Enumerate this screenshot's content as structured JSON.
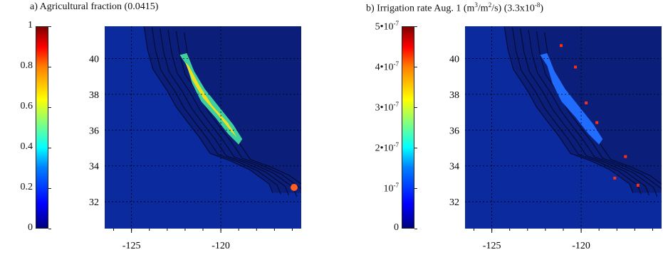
{
  "chart_data": [
    {
      "type": "heatmap",
      "title": "a) Agricultural fraction (0.0415)",
      "colorbar": {
        "range": [
          0,
          1
        ],
        "ticks": [
          "0",
          "0.2",
          "0.4",
          "0.6",
          "0.8",
          "1"
        ]
      },
      "xticks": [
        "-125",
        "-120"
      ],
      "yticks": [
        "32",
        "34",
        "36",
        "38",
        "40"
      ],
      "xlim": [
        -126.5,
        -115.5
      ],
      "ylim": [
        30.5,
        41.8
      ],
      "colors": {
        "ocean": "#0a2a9e",
        "land": "#0b1f7a"
      }
    },
    {
      "type": "heatmap",
      "title_parts": [
        "b) Irrigation rate Aug. 1 (m",
        "3",
        "/m",
        "2",
        "/s) (3.3x10",
        "-8",
        ")"
      ],
      "colorbar": {
        "range": [
          0,
          5e-07
        ],
        "ticks": [
          "0",
          "10-7",
          "2•10-7",
          "3•10-7",
          "4•10-7",
          "5•10-7"
        ]
      },
      "xticks": [
        "-125",
        "-120"
      ],
      "yticks": [
        "32",
        "34",
        "36",
        "38",
        "40"
      ],
      "xlim": [
        -126.5,
        -115.5
      ],
      "ylim": [
        30.5,
        41.8
      ],
      "colors": {
        "ocean": "#0a2a9e",
        "land": "#0b1f7a"
      }
    }
  ]
}
